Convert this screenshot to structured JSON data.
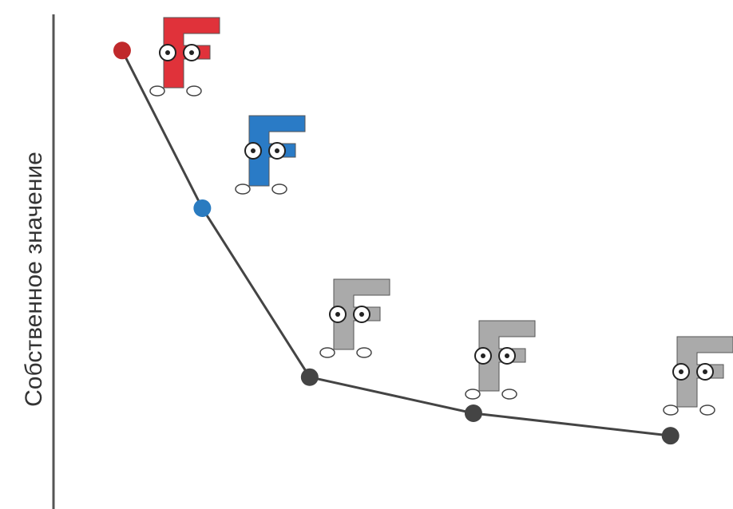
{
  "chart_data": {
    "type": "line",
    "y_label": "Собственное значение",
    "x": [
      10.1,
      21.9,
      37.7,
      61.8,
      90.8
    ],
    "xlim": [
      0,
      100
    ],
    "ylim": [
      0,
      100
    ],
    "series": [
      {
        "color": "#444444",
        "values": [
          92.6,
          60.3,
          25.7,
          18.3,
          13.7
        ],
        "marker_colors": [
          "#c0292b",
          "#2a7bc0",
          "#444444",
          "#444444",
          "#444444"
        ]
      }
    ]
  }
}
